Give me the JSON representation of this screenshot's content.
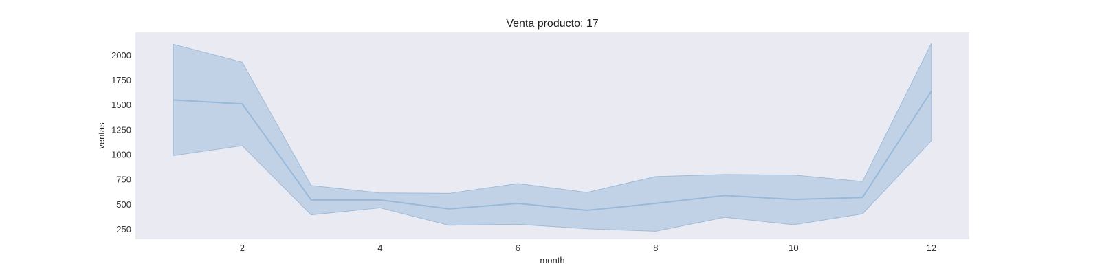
{
  "chart_data": {
    "type": "line",
    "title": "Venta producto: 17",
    "xlabel": "month",
    "ylabel": "ventas",
    "xlim": [
      0.45,
      12.55
    ],
    "ylim": [
      150,
      2230
    ],
    "grid": false,
    "x_ticks": [
      2,
      4,
      6,
      8,
      10,
      12
    ],
    "y_ticks": [
      250,
      500,
      750,
      1000,
      1250,
      1500,
      1750,
      2000
    ],
    "series": [
      {
        "x": [
          1,
          2,
          3,
          4,
          5,
          6,
          7,
          8,
          9,
          10,
          11,
          12
        ],
        "y": [
          1550,
          1510,
          545,
          545,
          455,
          510,
          440,
          510,
          590,
          550,
          570,
          1640
        ],
        "lower": [
          990,
          1090,
          395,
          465,
          290,
          300,
          255,
          230,
          370,
          295,
          405,
          1140
        ],
        "upper": [
          2110,
          1930,
          690,
          615,
          610,
          710,
          620,
          780,
          800,
          795,
          730,
          2120
        ]
      }
    ],
    "colors": {
      "plot_background": "#eaeaf2",
      "band_fill": "#a9c4de",
      "band_edge": "#9dbbd9",
      "line": "#97b9da"
    }
  }
}
